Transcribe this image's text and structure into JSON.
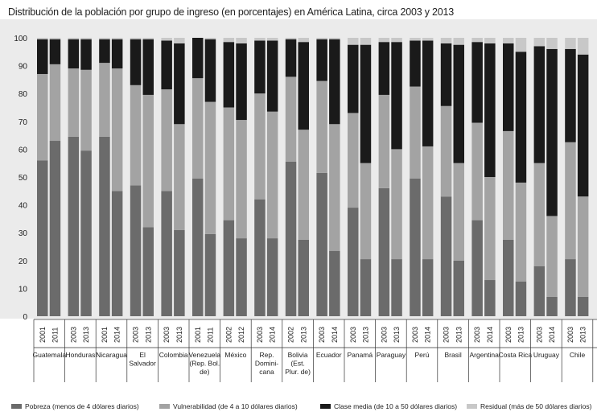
{
  "chart_data": {
    "type": "bar",
    "stacked": true,
    "title": "Distribución de la población por grupo de ingreso (en porcentajes) en América Latina, circa 2003 y 2013",
    "xlabel": "",
    "ylabel": "",
    "ylim": [
      0,
      100
    ],
    "yticks": [
      0,
      10,
      20,
      30,
      40,
      50,
      60,
      70,
      80,
      90,
      100
    ],
    "grid": false,
    "legend_position": "bottom",
    "countries": [
      {
        "label": "Guatemala",
        "years": [
          "2001",
          "2011"
        ]
      },
      {
        "label": "Honduras",
        "years": [
          "2003",
          "2013"
        ]
      },
      {
        "label": "Nicaragua",
        "years": [
          "2001",
          "2014"
        ]
      },
      {
        "label": "El Salvador",
        "years": [
          "2003",
          "2013"
        ]
      },
      {
        "label": "Colombia",
        "years": [
          "2003",
          "2013"
        ]
      },
      {
        "label": "Venezuela (Rep. Bol. de)",
        "years": [
          "2001",
          "2011"
        ]
      },
      {
        "label": "México",
        "years": [
          "2002",
          "2012"
        ]
      },
      {
        "label": "Rep. Domini- cana",
        "years": [
          "2003",
          "2014"
        ]
      },
      {
        "label": "Bolivia (Est. Plur. de)",
        "years": [
          "2002",
          "2013"
        ]
      },
      {
        "label": "Ecuador",
        "years": [
          "2003",
          "2014"
        ]
      },
      {
        "label": "Panamá",
        "years": [
          "2003",
          "2013"
        ]
      },
      {
        "label": "Paraguay",
        "years": [
          "2003",
          "2013"
        ]
      },
      {
        "label": "Perú",
        "years": [
          "2003",
          "2014"
        ]
      },
      {
        "label": "Brasil",
        "years": [
          "2003",
          "2013"
        ]
      },
      {
        "label": "Argentina",
        "years": [
          "2003",
          "2014"
        ]
      },
      {
        "label": "Costa Rica",
        "years": [
          "2003",
          "2013"
        ]
      },
      {
        "label": "Uruguay",
        "years": [
          "2003",
          "2014"
        ]
      },
      {
        "label": "Chile",
        "years": [
          "2003",
          "2013"
        ]
      }
    ],
    "series": [
      {
        "name": "Pobreza (menos de 4 dólares diarios)",
        "color": "#6b6b6b",
        "values": [
          56,
          63,
          64.5,
          59.5,
          64.5,
          45,
          47,
          32,
          45,
          31,
          49.5,
          29.5,
          34.5,
          28,
          42,
          28,
          55.5,
          27.5,
          51.5,
          23.5,
          39,
          20.5,
          46,
          20.5,
          49.5,
          20.5,
          43,
          20,
          34.5,
          13,
          27.5,
          12.5,
          18,
          7,
          20.5,
          7
        ]
      },
      {
        "name": "Vulnerabilidad (de 4 a 10 dólares diarios)",
        "color": "#a3a3a3",
        "values": [
          31,
          27.5,
          24.5,
          29,
          26.5,
          44,
          36,
          47.5,
          36.5,
          38,
          36,
          47.5,
          40.5,
          42.5,
          38,
          45.5,
          30.5,
          39.5,
          33,
          45.5,
          34,
          34.5,
          33.5,
          39.5,
          33,
          40.5,
          32.5,
          35,
          35,
          37,
          39,
          35.5,
          37,
          29,
          42,
          36
        ]
      },
      {
        "name": "Clase media (de 10 a 50 dólares diarios)",
        "color": "#1a1a1a",
        "values": [
          12.5,
          9,
          10.5,
          11,
          8.5,
          10.5,
          16.5,
          20,
          17.5,
          29,
          14.5,
          22.5,
          23.5,
          27.5,
          19,
          25.5,
          13.5,
          31.5,
          15,
          30.5,
          24.5,
          42.5,
          19,
          38.5,
          16.5,
          38,
          22.5,
          42.5,
          29,
          48,
          31.5,
          47,
          42,
          60,
          33.5,
          51
        ]
      },
      {
        "name": "Residual (más de 50 dólares diarios)",
        "color": "#c8c8c8",
        "values": [
          0.5,
          0.5,
          0.5,
          0.5,
          0.5,
          0.5,
          0.5,
          0.5,
          1,
          2,
          0,
          0.5,
          1.5,
          2,
          1,
          1,
          0.5,
          1.5,
          0.5,
          0.5,
          2.5,
          2.5,
          1.5,
          1.5,
          1,
          1,
          2,
          2.5,
          1.5,
          2,
          2,
          5,
          3,
          4,
          4,
          6
        ]
      }
    ]
  }
}
